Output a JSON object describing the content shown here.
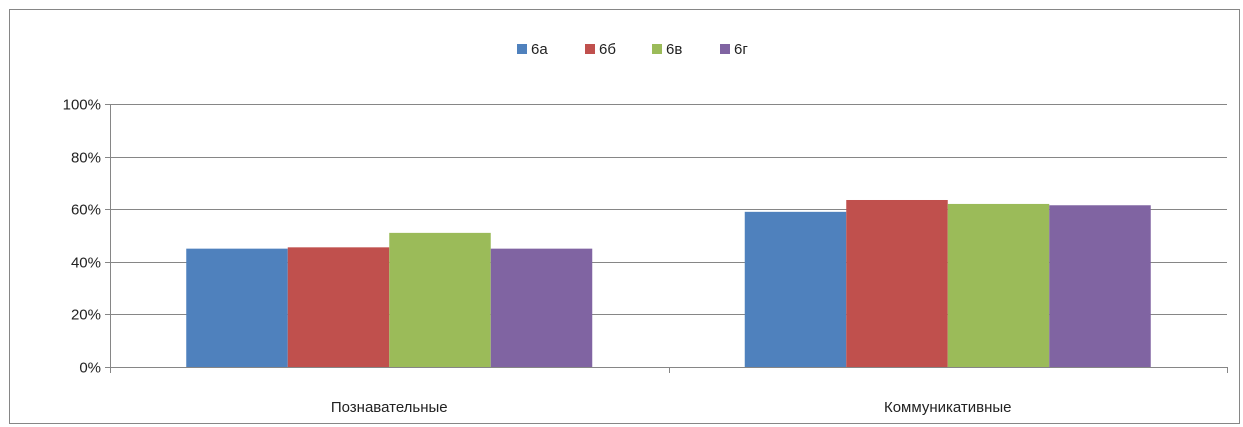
{
  "chart_data": {
    "type": "bar",
    "categories": [
      "Познавательные",
      "Коммуникативные"
    ],
    "series": [
      {
        "name": "6а",
        "values": [
          45,
          59
        ],
        "color": "#4F81BD"
      },
      {
        "name": "6б",
        "values": [
          45.5,
          63.5
        ],
        "color": "#C0504D"
      },
      {
        "name": "6в",
        "values": [
          51,
          62
        ],
        "color": "#9BBB59"
      },
      {
        "name": "6г",
        "values": [
          45,
          61.5
        ],
        "color": "#8064A2"
      }
    ],
    "ylim": [
      0,
      100
    ],
    "yticks": [
      "0%",
      "20%",
      "40%",
      "60%",
      "80%",
      "100%"
    ],
    "ytick_values": [
      0,
      20,
      40,
      60,
      80,
      100
    ],
    "grid": true,
    "legend": "top"
  }
}
